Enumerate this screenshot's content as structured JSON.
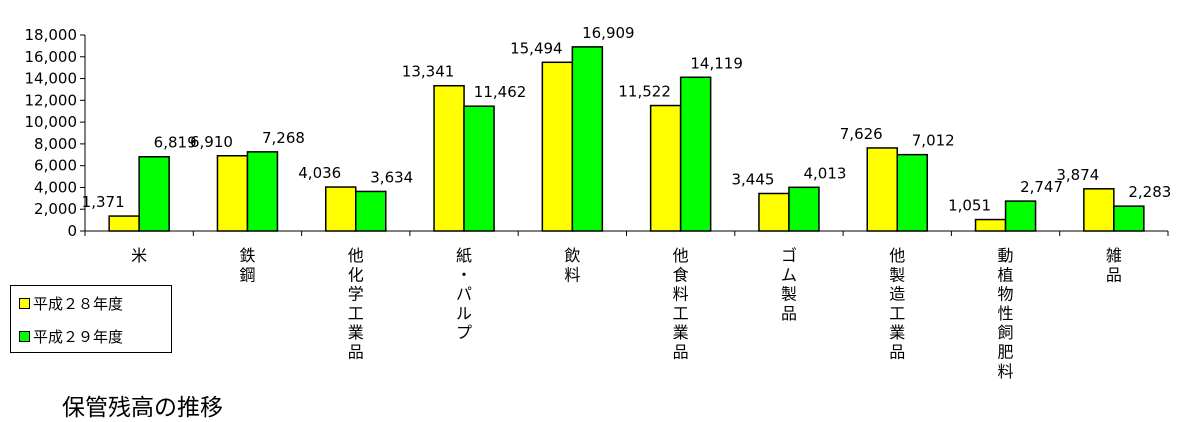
{
  "title": "保管残高の推移",
  "chart_data": {
    "type": "bar",
    "title": "保管残高の推移",
    "categories": [
      "米",
      "鉄鋼",
      "他化学工業品",
      "紙・パルプ",
      "飲料",
      "他食料工業品",
      "ゴム製品",
      "他製造工業品",
      "動植物性飼肥料",
      "雑品"
    ],
    "category_labels": [
      "米",
      "鉄\n鋼",
      "他\n化\n学\n工\n業\n品",
      "紙\n・\nパ\nル\nプ",
      "飲\n料",
      "他\n食\n料\n工\n業\n品",
      "ゴ\nム\n製\n品",
      "他\n製\n造\n工\n業\n品",
      "動\n植\n物\n性\n飼\n肥\n料",
      "雑\n品"
    ],
    "series": [
      {
        "name": "平成２８年度",
        "color": "#ffff00",
        "values": [
          1371,
          6910,
          4036,
          13341,
          15494,
          11522,
          3445,
          7626,
          1051,
          3874
        ],
        "labels": [
          "1,371",
          "6,910",
          "4,036",
          "13,341",
          "15,494",
          "11,522",
          "3,445",
          "7,626",
          "1,051",
          "3,874"
        ]
      },
      {
        "name": "平成２９年度",
        "color": "#00ff00",
        "values": [
          6819,
          7268,
          3634,
          11462,
          16909,
          14119,
          4013,
          7012,
          2747,
          2283
        ],
        "labels": [
          "6,819",
          "7,268",
          "3,634",
          "11,462",
          "16,909",
          "14,119",
          "4,013",
          "7,012",
          "2,747",
          "2,283"
        ]
      }
    ],
    "ylim": [
      0,
      18000
    ],
    "yticks": [
      0,
      2000,
      4000,
      6000,
      8000,
      10000,
      12000,
      14000,
      16000,
      18000
    ],
    "ytick_labels": [
      "0",
      "2,000",
      "4,000",
      "6,000",
      "8,000",
      "10,000",
      "12,000",
      "14,000",
      "16,000",
      "18,000"
    ],
    "grid": false,
    "legend_position": "bottom-left"
  }
}
